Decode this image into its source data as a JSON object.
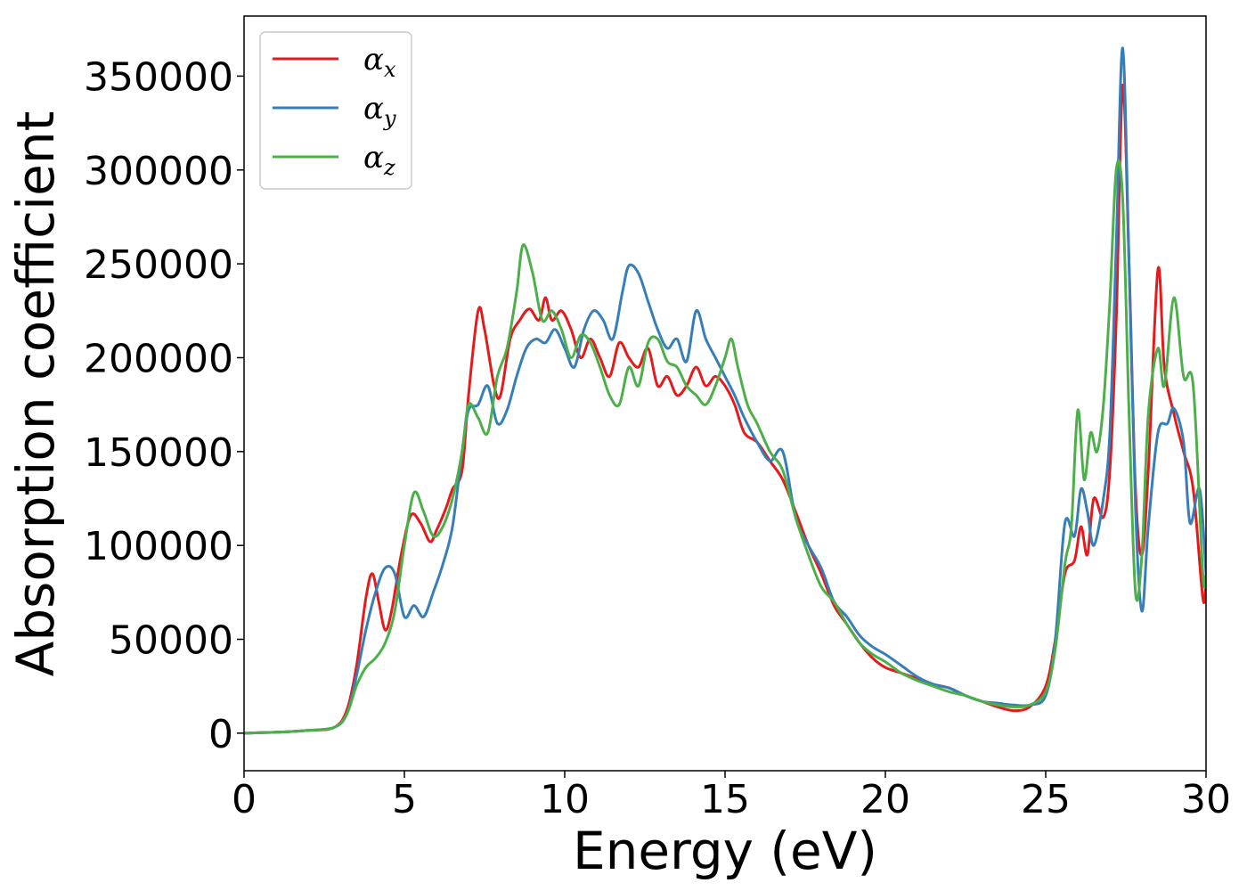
{
  "chart_data": {
    "type": "line",
    "title": "",
    "xlabel": "Energy (eV)",
    "ylabel": "Absorption coefficient",
    "xlim": [
      0,
      30
    ],
    "ylim": [
      -20000,
      382000
    ],
    "xticks": [
      0,
      5,
      10,
      15,
      20,
      25,
      30
    ],
    "yticks": [
      0,
      50000,
      100000,
      150000,
      200000,
      250000,
      300000,
      350000
    ],
    "grid": false,
    "legend_position": "top-left",
    "series": [
      {
        "name": "α",
        "subscript": "x",
        "color": "#e41a1c",
        "x": [
          0,
          1,
          2,
          2.8,
          3.2,
          3.5,
          3.8,
          4.0,
          4.2,
          4.4,
          4.6,
          4.9,
          5.2,
          5.5,
          5.8,
          6.0,
          6.3,
          6.5,
          6.8,
          7.0,
          7.3,
          7.5,
          7.8,
          8.0,
          8.3,
          8.6,
          8.9,
          9.2,
          9.4,
          9.6,
          9.9,
          10.2,
          10.5,
          10.8,
          11.1,
          11.4,
          11.7,
          12.0,
          12.3,
          12.6,
          12.9,
          13.2,
          13.5,
          13.8,
          14.1,
          14.4,
          14.7,
          15.0,
          15.3,
          15.6,
          16.0,
          16.4,
          16.8,
          17.2,
          17.6,
          18.0,
          18.4,
          18.8,
          19.2,
          19.6,
          20.0,
          20.5,
          21.0,
          21.5,
          22.0,
          22.5,
          23.0,
          23.5,
          24.0,
          24.5,
          25.0,
          25.3,
          25.6,
          25.9,
          26.1,
          26.3,
          26.5,
          26.8,
          27.0,
          27.2,
          27.4,
          27.6,
          27.8,
          28.0,
          28.2,
          28.5,
          28.7,
          29.0,
          29.3,
          29.6,
          29.9,
          30.0
        ],
        "values": [
          0,
          500,
          1500,
          3000,
          12000,
          35000,
          72000,
          85000,
          70000,
          55000,
          65000,
          95000,
          116000,
          112000,
          102000,
          108000,
          120000,
          130000,
          140000,
          180000,
          225000,
          215000,
          185000,
          180000,
          210000,
          220000,
          226000,
          220000,
          232000,
          220000,
          225000,
          215000,
          200000,
          210000,
          200000,
          190000,
          208000,
          200000,
          195000,
          205000,
          185000,
          190000,
          180000,
          185000,
          195000,
          185000,
          190000,
          185000,
          175000,
          160000,
          155000,
          145000,
          135000,
          118000,
          100000,
          85000,
          68000,
          58000,
          48000,
          40000,
          35000,
          32000,
          29000,
          26000,
          24000,
          20000,
          17000,
          14000,
          12000,
          14000,
          25000,
          50000,
          85000,
          92000,
          110000,
          95000,
          125000,
          115000,
          140000,
          220000,
          345000,
          250000,
          130000,
          95000,
          140000,
          247000,
          195000,
          170000,
          150000,
          130000,
          72000,
          80000
        ]
      },
      {
        "name": "α",
        "subscript": "y",
        "color": "#377eb8",
        "x": [
          0,
          1,
          2,
          2.8,
          3.2,
          3.5,
          3.8,
          4.1,
          4.4,
          4.7,
          5.0,
          5.3,
          5.6,
          5.9,
          6.2,
          6.5,
          6.8,
          7.0,
          7.3,
          7.6,
          7.9,
          8.2,
          8.5,
          8.8,
          9.1,
          9.4,
          9.7,
          10.0,
          10.3,
          10.6,
          10.9,
          11.2,
          11.5,
          11.8,
          12.0,
          12.3,
          12.6,
          12.9,
          13.2,
          13.5,
          13.8,
          14.1,
          14.4,
          14.7,
          15.0,
          15.3,
          15.6,
          16.0,
          16.4,
          16.8,
          17.2,
          17.6,
          18.0,
          18.4,
          18.8,
          19.2,
          19.6,
          20.0,
          20.5,
          21.0,
          21.5,
          22.0,
          22.5,
          23.0,
          23.5,
          24.0,
          24.5,
          25.0,
          25.3,
          25.6,
          25.9,
          26.1,
          26.3,
          26.5,
          26.8,
          27.0,
          27.2,
          27.4,
          27.6,
          27.8,
          28.0,
          28.2,
          28.5,
          28.8,
          29.0,
          29.3,
          29.5,
          29.8,
          30.0
        ],
        "values": [
          0,
          500,
          1500,
          3000,
          10000,
          30000,
          55000,
          75000,
          88000,
          85000,
          62000,
          68000,
          62000,
          75000,
          90000,
          110000,
          150000,
          172000,
          175000,
          185000,
          165000,
          172000,
          190000,
          205000,
          210000,
          208000,
          215000,
          205000,
          195000,
          215000,
          225000,
          220000,
          210000,
          235000,
          249000,
          245000,
          230000,
          215000,
          205000,
          210000,
          198000,
          225000,
          210000,
          200000,
          190000,
          180000,
          168000,
          155000,
          145000,
          150000,
          115000,
          100000,
          88000,
          70000,
          62000,
          52000,
          46000,
          42000,
          36000,
          30000,
          26000,
          24000,
          20000,
          17000,
          16000,
          15000,
          15000,
          20000,
          50000,
          112000,
          105000,
          130000,
          118000,
          100000,
          125000,
          160000,
          260000,
          365000,
          250000,
          120000,
          65000,
          110000,
          160000,
          165000,
          173000,
          155000,
          112000,
          130000,
          85000
        ]
      },
      {
        "name": "α",
        "subscript": "z",
        "color": "#4daf4a",
        "x": [
          0,
          1,
          2,
          2.8,
          3.2,
          3.5,
          3.8,
          4.1,
          4.4,
          4.7,
          5.0,
          5.3,
          5.6,
          5.9,
          6.2,
          6.5,
          6.8,
          7.0,
          7.3,
          7.6,
          7.9,
          8.2,
          8.5,
          8.7,
          9.0,
          9.3,
          9.6,
          9.9,
          10.2,
          10.5,
          10.8,
          11.1,
          11.4,
          11.7,
          12.0,
          12.3,
          12.6,
          12.9,
          13.2,
          13.5,
          13.8,
          14.1,
          14.4,
          14.7,
          15.0,
          15.2,
          15.4,
          15.7,
          16.0,
          16.4,
          16.8,
          17.2,
          17.6,
          18.0,
          18.4,
          18.8,
          19.2,
          19.6,
          20.0,
          20.5,
          21.0,
          21.5,
          22.0,
          22.5,
          23.0,
          23.5,
          24.0,
          24.5,
          25.0,
          25.3,
          25.6,
          25.8,
          26.0,
          26.2,
          26.4,
          26.6,
          26.8,
          27.0,
          27.2,
          27.4,
          27.6,
          27.8,
          28.0,
          28.2,
          28.5,
          28.7,
          29.0,
          29.3,
          29.6,
          29.9,
          30.0
        ],
        "values": [
          0,
          500,
          1500,
          3000,
          10000,
          25000,
          35000,
          40000,
          48000,
          65000,
          100000,
          128000,
          118000,
          105000,
          110000,
          125000,
          150000,
          175000,
          168000,
          160000,
          190000,
          205000,
          235000,
          260000,
          245000,
          220000,
          225000,
          215000,
          200000,
          212000,
          208000,
          195000,
          180000,
          175000,
          195000,
          185000,
          208000,
          210000,
          198000,
          195000,
          185000,
          180000,
          175000,
          185000,
          200000,
          210000,
          195000,
          175000,
          165000,
          150000,
          140000,
          115000,
          95000,
          78000,
          70000,
          58000,
          48000,
          42000,
          38000,
          32000,
          28000,
          25000,
          22000,
          20000,
          17000,
          15000,
          14000,
          15000,
          22000,
          45000,
          90000,
          110000,
          172000,
          135000,
          160000,
          150000,
          175000,
          230000,
          300000,
          285000,
          170000,
          75000,
          95000,
          170000,
          205000,
          185000,
          232000,
          190000,
          185000,
          85000,
          85000
        ]
      }
    ]
  }
}
